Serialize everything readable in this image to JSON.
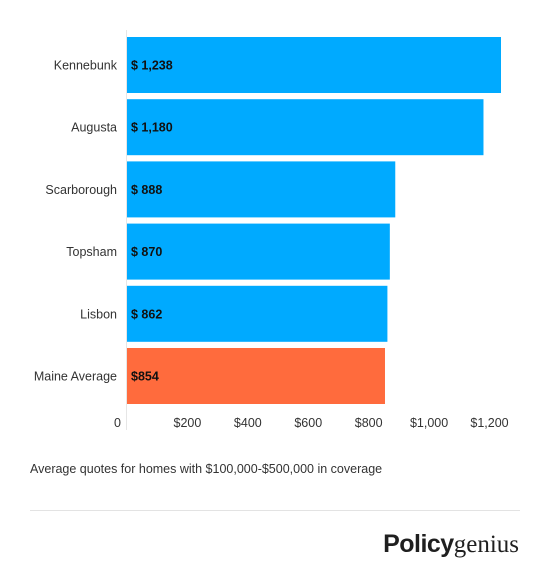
{
  "chart_data": {
    "type": "bar",
    "orientation": "horizontal",
    "categories": [
      "Kennebunk",
      "Augusta",
      "Scarborough",
      "Topsham",
      "Lisbon",
      "Maine Average"
    ],
    "values": [
      1238,
      1180,
      888,
      870,
      862,
      854
    ],
    "value_labels": [
      "$ 1,238",
      "$ 1,180",
      "$ 888",
      "$ 870",
      "$ 862",
      "$854"
    ],
    "bar_colors": [
      "#00aaff",
      "#00aaff",
      "#00aaff",
      "#00aaff",
      "#00aaff",
      "#ff6b3d"
    ],
    "x_ticks": [
      0,
      200,
      400,
      600,
      800,
      1000,
      1200
    ],
    "x_tick_labels": [
      "0",
      "$200",
      "$400",
      "$600",
      "$800",
      "$1,000",
      "$1,200"
    ],
    "xlim": [
      0,
      1238
    ],
    "grid": false,
    "title": "",
    "xlabel": "",
    "ylabel": ""
  },
  "caption": "Average quotes for homes with $100,000-$500,000 in coverage",
  "logo": {
    "part1": "Policy",
    "part2": "genius"
  }
}
